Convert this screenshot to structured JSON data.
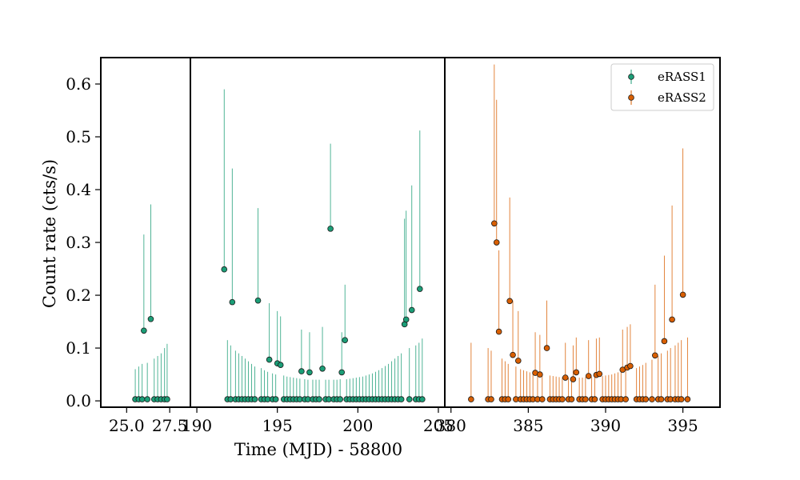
{
  "chart_data": {
    "type": "scatter",
    "xlabel": "Time (MJD) - 58800",
    "ylabel": "Count rate (cts/s)",
    "ylim": [
      -0.012,
      0.65
    ],
    "yticks": [
      "0.0",
      "0.1",
      "0.2",
      "0.3",
      "0.4",
      "0.5",
      "0.6"
    ],
    "legend_position": "top-right",
    "panels": [
      {
        "xlim": [
          23.5,
          28.7
        ],
        "ticks": [
          25.0,
          27.5
        ],
        "tick_labels": [
          "25.0",
          "27.5"
        ]
      },
      {
        "xlim": [
          189.6,
          205.4
        ],
        "ticks": [
          190,
          195,
          200,
          205
        ],
        "tick_labels": [
          "190",
          "195",
          "200",
          "205"
        ]
      },
      {
        "xlim": [
          379.6,
          397.4
        ],
        "ticks": [
          380,
          385,
          390,
          395
        ],
        "tick_labels": [
          "380",
          "385",
          "390",
          "395"
        ]
      }
    ],
    "series": [
      {
        "name": "eRASS1",
        "color": "#1b9e77",
        "points": [
          [
            25.5,
            0.003,
            0.06
          ],
          [
            25.7,
            0.003,
            0.065
          ],
          [
            25.9,
            0.003,
            0.07
          ],
          [
            26.0,
            0.133,
            0.315
          ],
          [
            26.2,
            0.003,
            0.072
          ],
          [
            26.4,
            0.155,
            0.372
          ],
          [
            26.6,
            0.003,
            0.08
          ],
          [
            26.8,
            0.003,
            0.085
          ],
          [
            27.0,
            0.003,
            0.09
          ],
          [
            27.2,
            0.003,
            0.1
          ],
          [
            27.35,
            0.003,
            0.108
          ],
          [
            191.7,
            0.249,
            0.59
          ],
          [
            191.9,
            0.003,
            0.115
          ],
          [
            192.1,
            0.003,
            0.105
          ],
          [
            192.2,
            0.187,
            0.44
          ],
          [
            192.4,
            0.003,
            0.095
          ],
          [
            192.6,
            0.003,
            0.09
          ],
          [
            192.8,
            0.003,
            0.085
          ],
          [
            193.0,
            0.003,
            0.08
          ],
          [
            193.2,
            0.003,
            0.075
          ],
          [
            193.4,
            0.003,
            0.07
          ],
          [
            193.6,
            0.003,
            0.065
          ],
          [
            193.8,
            0.19,
            0.365
          ],
          [
            194.0,
            0.003,
            0.062
          ],
          [
            194.2,
            0.003,
            0.058
          ],
          [
            194.4,
            0.003,
            0.055
          ],
          [
            194.5,
            0.078,
            0.185
          ],
          [
            194.7,
            0.003,
            0.052
          ],
          [
            194.9,
            0.003,
            0.05
          ],
          [
            195.0,
            0.071,
            0.17
          ],
          [
            195.2,
            0.068,
            0.16
          ],
          [
            195.4,
            0.003,
            0.048
          ],
          [
            195.6,
            0.003,
            0.046
          ],
          [
            195.8,
            0.003,
            0.045
          ],
          [
            196.0,
            0.003,
            0.044
          ],
          [
            196.2,
            0.003,
            0.043
          ],
          [
            196.4,
            0.003,
            0.042
          ],
          [
            196.5,
            0.056,
            0.135
          ],
          [
            196.7,
            0.003,
            0.041
          ],
          [
            196.9,
            0.003,
            0.04
          ],
          [
            197.0,
            0.054,
            0.13
          ],
          [
            197.2,
            0.003,
            0.04
          ],
          [
            197.4,
            0.003,
            0.04
          ],
          [
            197.6,
            0.003,
            0.04
          ],
          [
            197.8,
            0.061,
            0.14
          ],
          [
            198.0,
            0.003,
            0.04
          ],
          [
            198.2,
            0.003,
            0.04
          ],
          [
            198.3,
            0.326,
            0.487
          ],
          [
            198.5,
            0.003,
            0.04
          ],
          [
            198.7,
            0.003,
            0.04
          ],
          [
            198.9,
            0.003,
            0.041
          ],
          [
            199.0,
            0.054,
            0.13
          ],
          [
            199.2,
            0.115,
            0.22
          ],
          [
            199.3,
            0.003,
            0.041
          ],
          [
            199.5,
            0.003,
            0.042
          ],
          [
            199.7,
            0.003,
            0.043
          ],
          [
            199.9,
            0.003,
            0.044
          ],
          [
            200.1,
            0.003,
            0.045
          ],
          [
            200.3,
            0.003,
            0.046
          ],
          [
            200.5,
            0.003,
            0.048
          ],
          [
            200.7,
            0.003,
            0.05
          ],
          [
            200.9,
            0.003,
            0.052
          ],
          [
            201.1,
            0.003,
            0.055
          ],
          [
            201.3,
            0.003,
            0.058
          ],
          [
            201.5,
            0.003,
            0.062
          ],
          [
            201.7,
            0.003,
            0.066
          ],
          [
            201.9,
            0.003,
            0.07
          ],
          [
            202.1,
            0.003,
            0.075
          ],
          [
            202.3,
            0.003,
            0.08
          ],
          [
            202.5,
            0.003,
            0.085
          ],
          [
            202.7,
            0.003,
            0.09
          ],
          [
            202.9,
            0.145,
            0.345
          ],
          [
            203.0,
            0.154,
            0.36
          ],
          [
            203.2,
            0.003,
            0.1
          ],
          [
            203.35,
            0.172,
            0.408
          ],
          [
            203.6,
            0.003,
            0.105
          ],
          [
            203.8,
            0.003,
            0.11
          ],
          [
            203.85,
            0.212,
            0.512
          ],
          [
            204.0,
            0.003,
            0.118
          ]
        ]
      },
      {
        "name": "eRASS2",
        "color": "#d95f02",
        "points": [
          [
            381.3,
            0.003,
            0.11
          ],
          [
            382.4,
            0.003,
            0.1
          ],
          [
            382.6,
            0.003,
            0.095
          ],
          [
            382.8,
            0.336,
            0.637
          ],
          [
            382.95,
            0.3,
            0.57
          ],
          [
            383.1,
            0.131,
            0.285
          ],
          [
            383.3,
            0.003,
            0.08
          ],
          [
            383.5,
            0.003,
            0.075
          ],
          [
            383.7,
            0.003,
            0.07
          ],
          [
            383.8,
            0.189,
            0.385
          ],
          [
            384.0,
            0.087,
            0.19
          ],
          [
            384.2,
            0.003,
            0.065
          ],
          [
            384.35,
            0.076,
            0.17
          ],
          [
            384.5,
            0.003,
            0.06
          ],
          [
            384.7,
            0.003,
            0.058
          ],
          [
            384.9,
            0.003,
            0.056
          ],
          [
            385.1,
            0.003,
            0.054
          ],
          [
            385.3,
            0.003,
            0.052
          ],
          [
            385.45,
            0.053,
            0.13
          ],
          [
            385.6,
            0.003,
            0.05
          ],
          [
            385.75,
            0.05,
            0.125
          ],
          [
            385.9,
            0.003,
            0.049
          ],
          [
            386.2,
            0.1,
            0.19
          ],
          [
            386.4,
            0.003,
            0.048
          ],
          [
            386.6,
            0.003,
            0.047
          ],
          [
            386.8,
            0.003,
            0.046
          ],
          [
            387.0,
            0.003,
            0.045
          ],
          [
            387.2,
            0.003,
            0.045
          ],
          [
            387.4,
            0.044,
            0.11
          ],
          [
            387.6,
            0.003,
            0.044
          ],
          [
            387.8,
            0.003,
            0.044
          ],
          [
            387.9,
            0.041,
            0.105
          ],
          [
            388.1,
            0.054,
            0.12
          ],
          [
            388.3,
            0.003,
            0.044
          ],
          [
            388.5,
            0.003,
            0.044
          ],
          [
            388.7,
            0.003,
            0.045
          ],
          [
            388.9,
            0.047,
            0.115
          ],
          [
            389.1,
            0.003,
            0.045
          ],
          [
            389.3,
            0.003,
            0.046
          ],
          [
            389.4,
            0.049,
            0.118
          ],
          [
            389.6,
            0.051,
            0.12
          ],
          [
            389.8,
            0.003,
            0.047
          ],
          [
            390.0,
            0.003,
            0.048
          ],
          [
            390.2,
            0.003,
            0.049
          ],
          [
            390.4,
            0.003,
            0.05
          ],
          [
            390.6,
            0.003,
            0.052
          ],
          [
            390.8,
            0.003,
            0.054
          ],
          [
            391.0,
            0.003,
            0.056
          ],
          [
            391.1,
            0.059,
            0.135
          ],
          [
            391.3,
            0.003,
            0.058
          ],
          [
            391.4,
            0.063,
            0.14
          ],
          [
            391.6,
            0.066,
            0.145
          ],
          [
            392.0,
            0.003,
            0.062
          ],
          [
            392.2,
            0.003,
            0.065
          ],
          [
            392.4,
            0.003,
            0.068
          ],
          [
            392.6,
            0.003,
            0.072
          ],
          [
            393.0,
            0.003,
            0.078
          ],
          [
            393.2,
            0.086,
            0.22
          ],
          [
            393.4,
            0.003,
            0.085
          ],
          [
            393.6,
            0.003,
            0.09
          ],
          [
            393.8,
            0.113,
            0.275
          ],
          [
            394.0,
            0.003,
            0.095
          ],
          [
            394.2,
            0.003,
            0.1
          ],
          [
            394.3,
            0.154,
            0.37
          ],
          [
            394.5,
            0.003,
            0.105
          ],
          [
            394.7,
            0.003,
            0.11
          ],
          [
            394.9,
            0.003,
            0.115
          ],
          [
            395.0,
            0.201,
            0.478
          ],
          [
            395.3,
            0.003,
            0.12
          ]
        ]
      }
    ]
  }
}
